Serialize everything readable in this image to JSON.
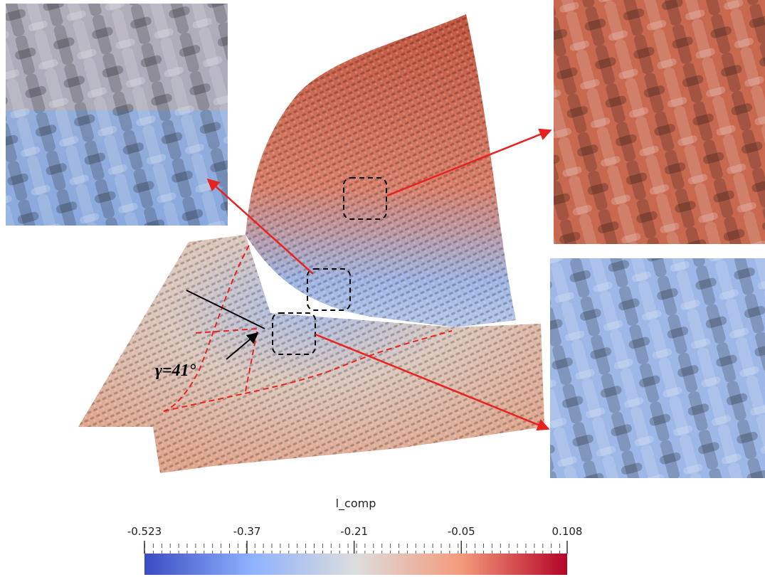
{
  "annotation": "γ=41°",
  "colorbar": {
    "title": "l_comp",
    "lim": [
      -0.523,
      0.108
    ],
    "ticks": [
      -0.523,
      -0.37,
      -0.21,
      -0.05,
      0.108
    ]
  }
}
